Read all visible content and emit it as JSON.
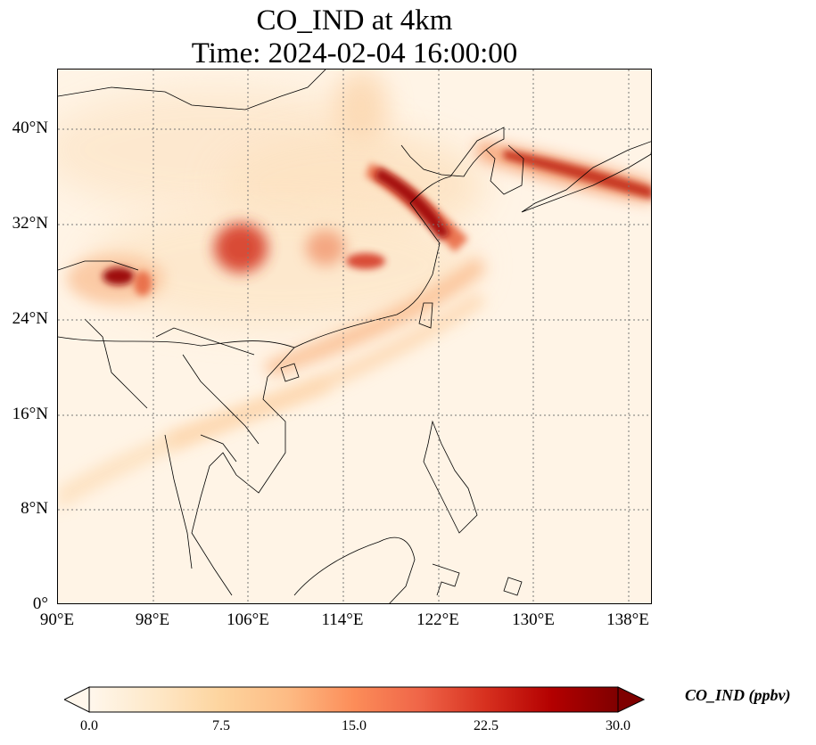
{
  "title": {
    "line1": "CO_IND at 4km",
    "line2": "Time: 2024-02-04 16:00:00"
  },
  "map": {
    "extent": {
      "lon_min": 90,
      "lon_max": 140,
      "lat_min": 0,
      "lat_max": 45
    },
    "gridlines": true,
    "field_colormap": "OrRd",
    "lat_ticks": [
      "0°",
      "8°N",
      "16°N",
      "24°N",
      "32°N",
      "40°N"
    ],
    "lon_ticks": [
      "90°E",
      "98°E",
      "106°E",
      "114°E",
      "122°E",
      "130°E",
      "138°E"
    ]
  },
  "colorbar": {
    "label": "CO_IND (ppbv)",
    "ticks": [
      "0.0",
      "7.5",
      "15.0",
      "22.5",
      "30.0"
    ],
    "min": 0,
    "max": 30,
    "extend": "both",
    "colors": [
      "#fff7ec",
      "#fee8c8",
      "#fdd49e",
      "#fdbb84",
      "#fc8d59",
      "#ef6548",
      "#d7301f",
      "#b30000",
      "#7f0000"
    ]
  }
}
